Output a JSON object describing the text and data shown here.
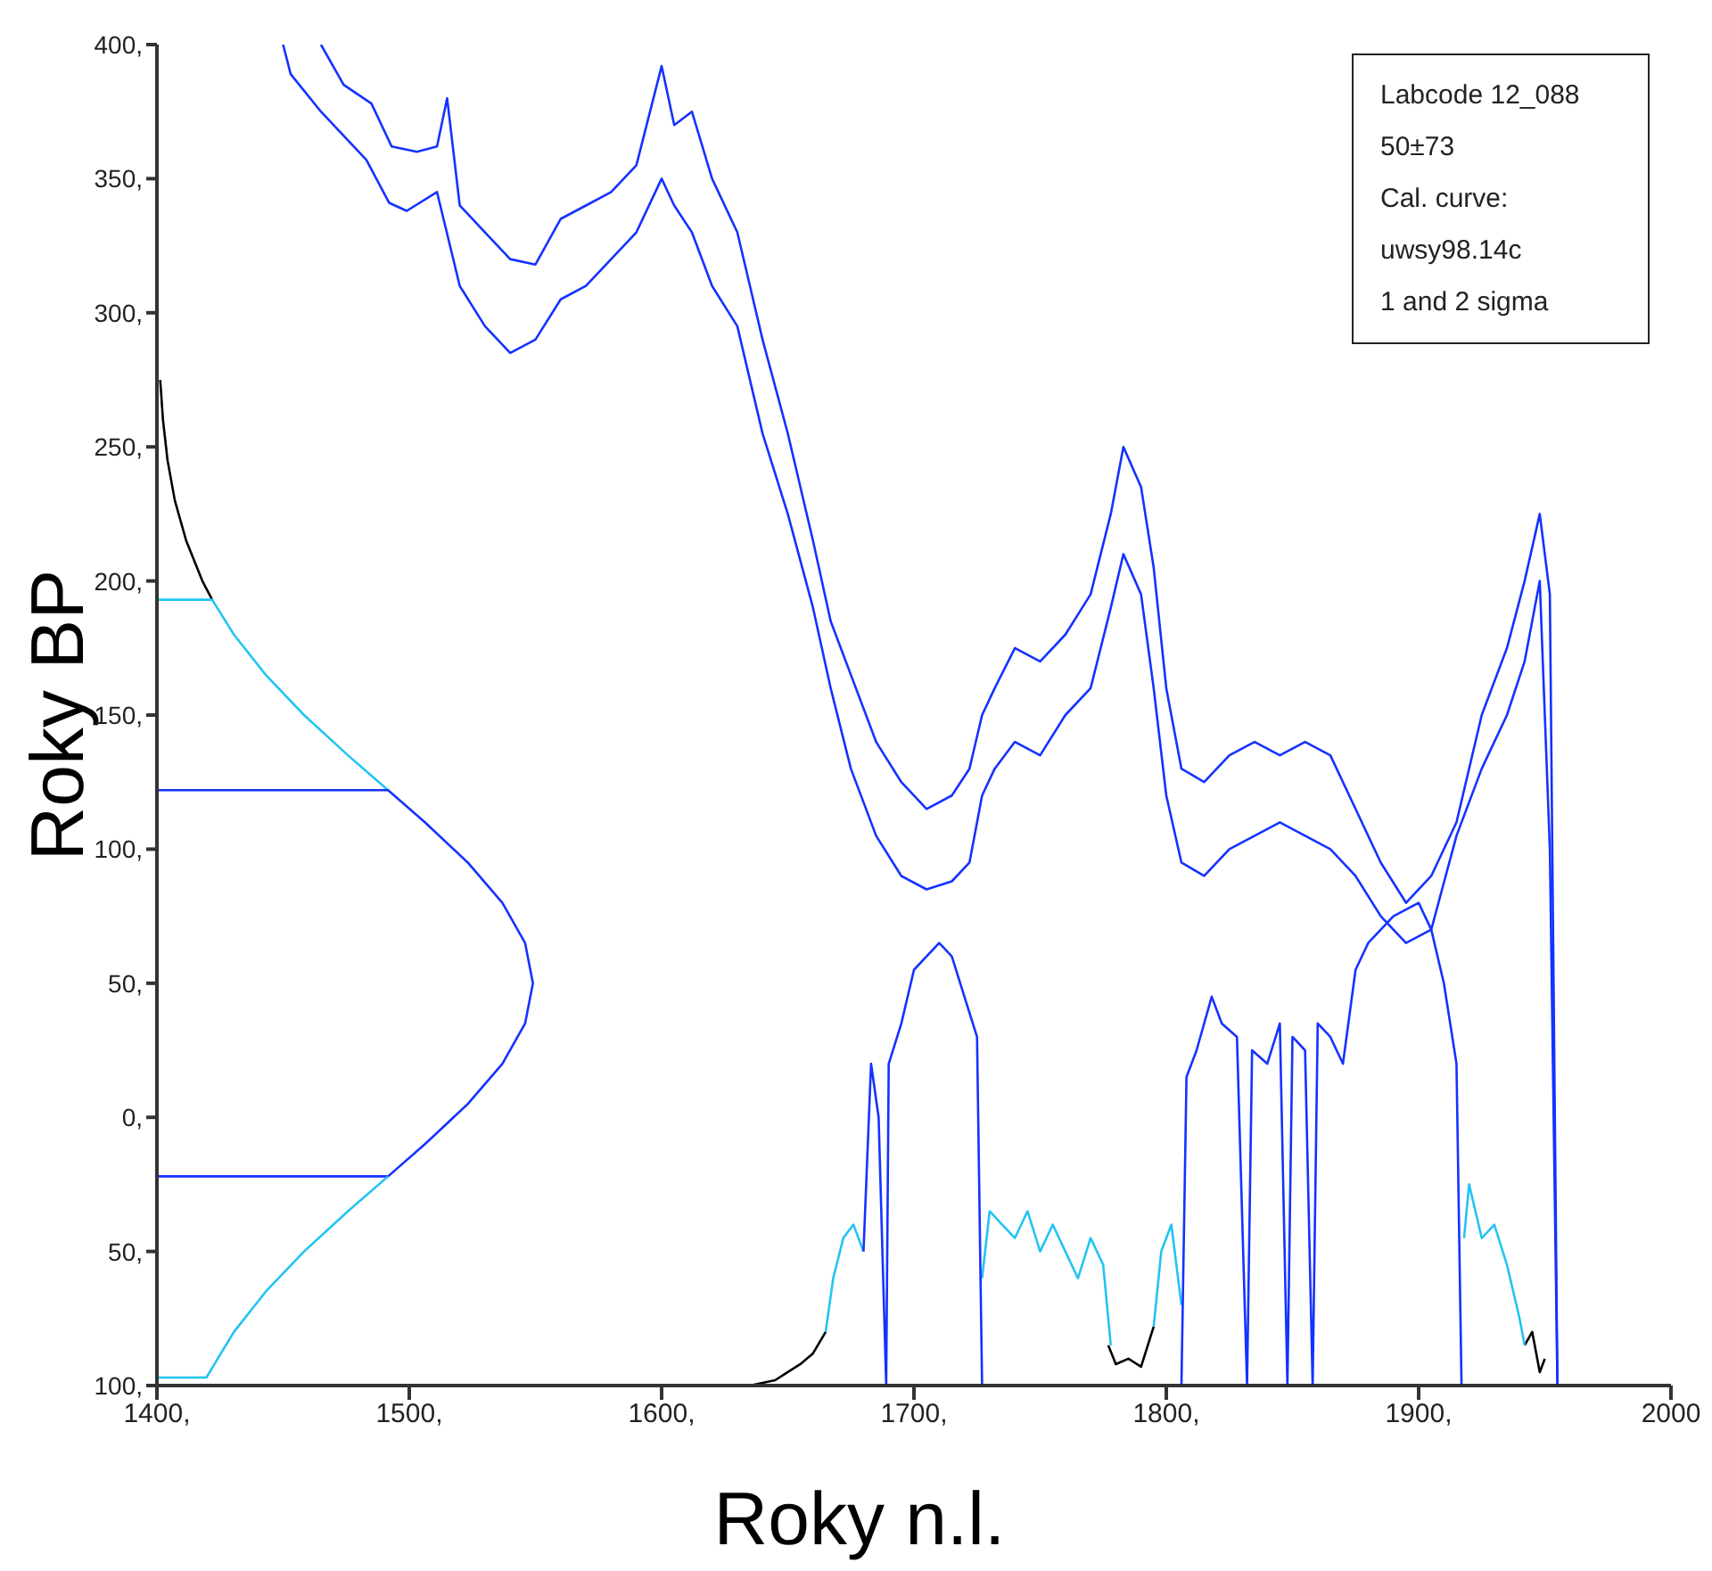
{
  "chart_data": {
    "type": "line",
    "xlabel": "Roky n.l.",
    "ylabel": "Roky BP",
    "xlim": [
      1400,
      2000
    ],
    "ylim": [
      -100,
      400
    ],
    "xticks": [
      {
        "value": 1400,
        "label": "1400,"
      },
      {
        "value": 1500,
        "label": "1500,"
      },
      {
        "value": 1600,
        "label": "1600,"
      },
      {
        "value": 1700,
        "label": "1700,"
      },
      {
        "value": 1800,
        "label": "1800,"
      },
      {
        "value": 1900,
        "label": "1900,"
      },
      {
        "value": 2000,
        "label": "2000"
      }
    ],
    "yticks": [
      {
        "value": -100,
        "label": "100,"
      },
      {
        "value": -50,
        "label": "50,"
      },
      {
        "value": 0,
        "label": "0,"
      },
      {
        "value": 50,
        "label": "50,"
      },
      {
        "value": 100,
        "label": "100,"
      },
      {
        "value": 150,
        "label": "150,"
      },
      {
        "value": 200,
        "label": "200,"
      },
      {
        "value": 250,
        "label": "250,"
      },
      {
        "value": 300,
        "label": "300,"
      },
      {
        "value": 350,
        "label": "350,"
      },
      {
        "value": 400,
        "label": "400,"
      }
    ],
    "marker": "none",
    "line_style": "solid",
    "annotations": [
      "Labcode 12_088",
      "50±73",
      "Cal. curve:",
      "uwsy98.14c",
      "1 and 2 sigma"
    ],
    "series": [
      {
        "color": "#1432ff",
        "x": [
          1465,
          1474,
          1485,
          1493,
          1503,
          1511,
          1515,
          1520,
          1530,
          1540,
          1550,
          1560,
          1570,
          1580,
          1590,
          1600,
          1605,
          1612,
          1620,
          1630,
          1640,
          1650,
          1660,
          1667,
          1675,
          1685,
          1695,
          1705,
          1715,
          1722,
          1727,
          1732,
          1740,
          1750,
          1760,
          1770,
          1778,
          1783,
          1790,
          1795,
          1800,
          1806,
          1815,
          1825,
          1835,
          1845,
          1855,
          1865,
          1875,
          1885,
          1895,
          1905,
          1915,
          1925,
          1935,
          1942,
          1948,
          1952,
          1955
        ],
        "values": [
          400,
          385,
          378,
          362,
          360,
          362,
          380,
          340,
          330,
          320,
          318,
          335,
          340,
          345,
          355,
          392,
          370,
          375,
          350,
          330,
          290,
          255,
          215,
          185,
          165,
          140,
          125,
          115,
          120,
          130,
          150,
          160,
          175,
          170,
          180,
          195,
          225,
          250,
          235,
          205,
          160,
          130,
          125,
          135,
          140,
          135,
          140,
          135,
          115,
          95,
          80,
          90,
          110,
          150,
          175,
          200,
          225,
          195,
          -100
        ]
      },
      {
        "color": "#1432ff",
        "x": [
          1450,
          1453,
          1465,
          1483,
          1492,
          1499,
          1511,
          1520,
          1530,
          1540,
          1550,
          1560,
          1570,
          1580,
          1590,
          1600,
          1605,
          1612,
          1620,
          1630,
          1640,
          1650,
          1660,
          1667,
          1675,
          1685,
          1695,
          1705,
          1715,
          1722,
          1727,
          1732,
          1740,
          1750,
          1760,
          1770,
          1778,
          1783,
          1790,
          1795,
          1800,
          1806,
          1815,
          1825,
          1835,
          1845,
          1855,
          1865,
          1875,
          1885,
          1895,
          1905,
          1915,
          1925,
          1935,
          1942,
          1948,
          1952,
          1955
        ],
        "values": [
          400,
          389,
          375,
          357,
          341,
          338,
          345,
          310,
          295,
          285,
          290,
          305,
          310,
          320,
          330,
          350,
          340,
          330,
          310,
          295,
          255,
          225,
          190,
          160,
          130,
          105,
          90,
          85,
          88,
          95,
          120,
          130,
          140,
          135,
          150,
          160,
          190,
          210,
          195,
          160,
          120,
          95,
          90,
          100,
          105,
          110,
          105,
          100,
          90,
          75,
          65,
          70,
          105,
          130,
          150,
          170,
          200,
          100,
          -100
        ]
      },
      {
        "color": "#000000",
        "x": [
          1401.3,
          1402.4,
          1404.2,
          1407.1,
          1411.6,
          1418,
          1421.9
        ],
        "values": [
          275,
          260,
          245,
          230,
          215,
          200,
          193
        ]
      },
      {
        "color": "#22c4f2",
        "x": [
          1400,
          1421.9,
          1430.5,
          1443.1,
          1458.3,
          1475.7,
          1491.6
        ],
        "values": [
          193,
          193,
          180,
          165,
          150,
          135,
          122
        ]
      },
      {
        "color": "#1432ff",
        "x": [
          1400,
          1491.6,
          1506.2,
          1523.2,
          1536.9,
          1545.9,
          1549,
          1545.9,
          1536.9,
          1523.2,
          1506.2,
          1491.6,
          1400
        ],
        "values": [
          122,
          122,
          110,
          95,
          80,
          65,
          50,
          35,
          20,
          5,
          -10,
          -22,
          -22
        ]
      },
      {
        "color": "#22c4f2",
        "x": [
          1491.6,
          1475.7,
          1458.3,
          1443.1,
          1430.5,
          1419.6,
          1400
        ],
        "values": [
          -22,
          -35,
          -50,
          -65,
          -80,
          -97,
          -97
        ]
      },
      {
        "color": "#000000",
        "x": [
          1635,
          1645,
          1650,
          1655,
          1660,
          1665,
          1720,
          1777,
          1780,
          1785,
          1790,
          1795,
          1870,
          1942,
          1945,
          1948,
          1950
        ],
        "values": [
          -100,
          -98,
          -95,
          -92,
          -88,
          -80,
          null,
          -85,
          -92,
          -90,
          -93,
          -78,
          null,
          -85,
          -80,
          -95,
          -90
        ]
      },
      {
        "color": "#22c4f2",
        "x": [
          1665,
          1668,
          1672,
          1676,
          1680,
          1700,
          1727,
          1730,
          1735,
          1740,
          1745,
          1750,
          1755,
          1760,
          1765,
          1770,
          1775,
          1778,
          1786,
          1795,
          1798,
          1802,
          1806,
          1860,
          1918,
          1920,
          1925,
          1930,
          1935,
          1940,
          1942
        ],
        "values": [
          -80,
          -60,
          -45,
          -40,
          -50,
          null,
          -60,
          -35,
          -40,
          -45,
          -35,
          -50,
          -40,
          -50,
          -60,
          -45,
          -55,
          -85,
          null,
          -78,
          -50,
          -40,
          -70,
          null,
          -45,
          -25,
          -45,
          -40,
          -55,
          -75,
          -85
        ]
      },
      {
        "color": "#1432ff",
        "x": [
          1680,
          1683,
          1686,
          1689,
          1690,
          1695,
          1700,
          1705,
          1710,
          1715,
          1720,
          1725,
          1727,
          1760,
          1806,
          1808,
          1812,
          1818,
          1822,
          1828,
          1832,
          1834,
          1840,
          1845,
          1848,
          1850,
          1855,
          1858,
          1860,
          1865,
          1870,
          1875,
          1880,
          1890,
          1900,
          1905,
          1910,
          1915,
          1917
        ],
        "values": [
          -50,
          20,
          0,
          -100,
          20,
          35,
          55,
          60,
          65,
          60,
          45,
          30,
          -100,
          null,
          -100,
          15,
          25,
          45,
          35,
          30,
          -100,
          25,
          20,
          35,
          -100,
          30,
          25,
          -100,
          35,
          30,
          20,
          55,
          65,
          75,
          80,
          70,
          50,
          20,
          -100
        ]
      }
    ]
  }
}
